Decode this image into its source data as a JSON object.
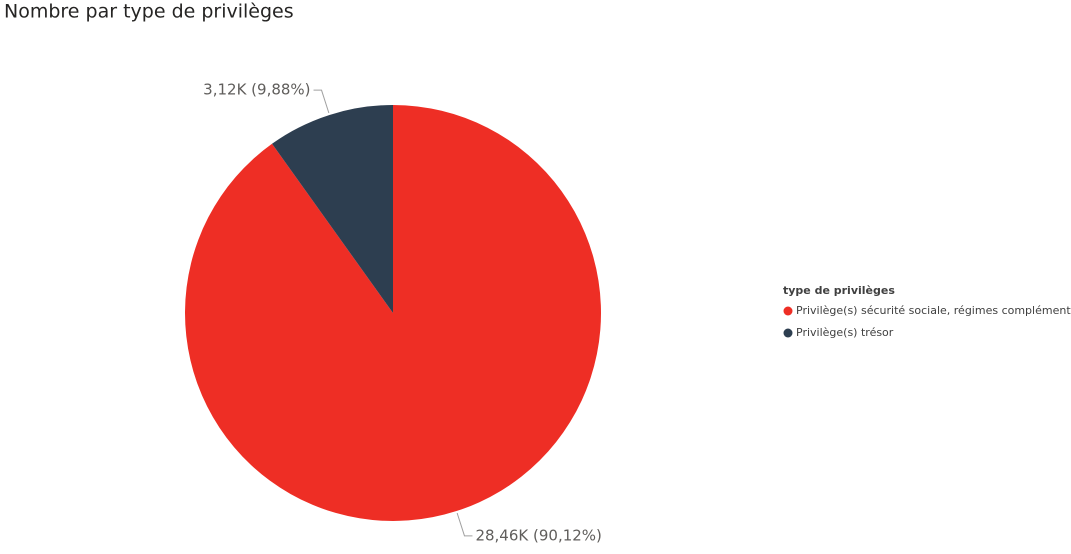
{
  "chart_data": {
    "type": "pie",
    "title": "Nombre par type de privilèges",
    "legend_title": "type de privilèges",
    "categories": [
      "Privilège(s) sécurité sociale, régimes complémentaires",
      "Privilège(s) trésor"
    ],
    "values": [
      28460,
      3120
    ],
    "value_labels": [
      "28,46K (90,12%)",
      "3,12K (9,88%)"
    ],
    "colors": [
      "#ee2e25",
      "#2d3e50"
    ],
    "legend": "right"
  }
}
